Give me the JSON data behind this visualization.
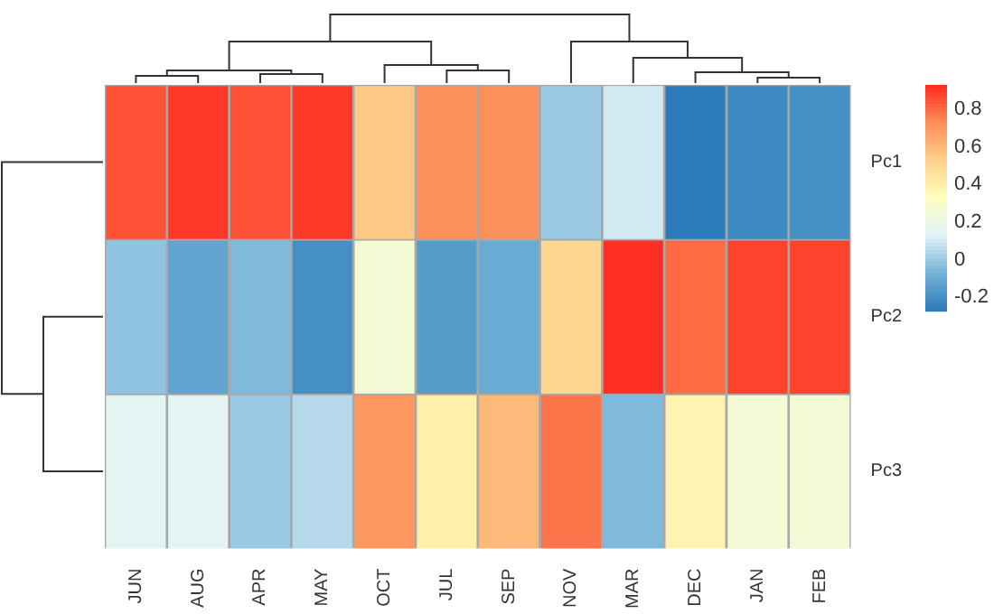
{
  "chart_data": {
    "type": "heatmap",
    "categories": [
      "JUN",
      "AUG",
      "APR",
      "MAY",
      "OCT",
      "JUL",
      "SEP",
      "NOV",
      "MAR",
      "DEC",
      "JAN",
      "FEB"
    ],
    "y_categories": [
      "Pc1",
      "Pc2",
      "Pc3"
    ],
    "cells": [
      [
        0.85,
        0.9,
        0.85,
        0.9,
        0.55,
        0.72,
        0.72,
        0.0,
        0.1,
        -0.27,
        -0.22,
        -0.2
      ],
      [
        -0.02,
        -0.12,
        -0.05,
        -0.2,
        0.25,
        -0.15,
        -0.1,
        0.5,
        0.92,
        0.8,
        0.88,
        0.88
      ],
      [
        0.15,
        0.15,
        0.0,
        0.05,
        0.7,
        0.4,
        0.6,
        0.78,
        -0.05,
        0.38,
        0.25,
        0.25
      ]
    ],
    "clim": [
      -0.27,
      0.93
    ],
    "cticks": [
      -0.2,
      0,
      0.2,
      0.4,
      0.6,
      0.8
    ]
  }
}
